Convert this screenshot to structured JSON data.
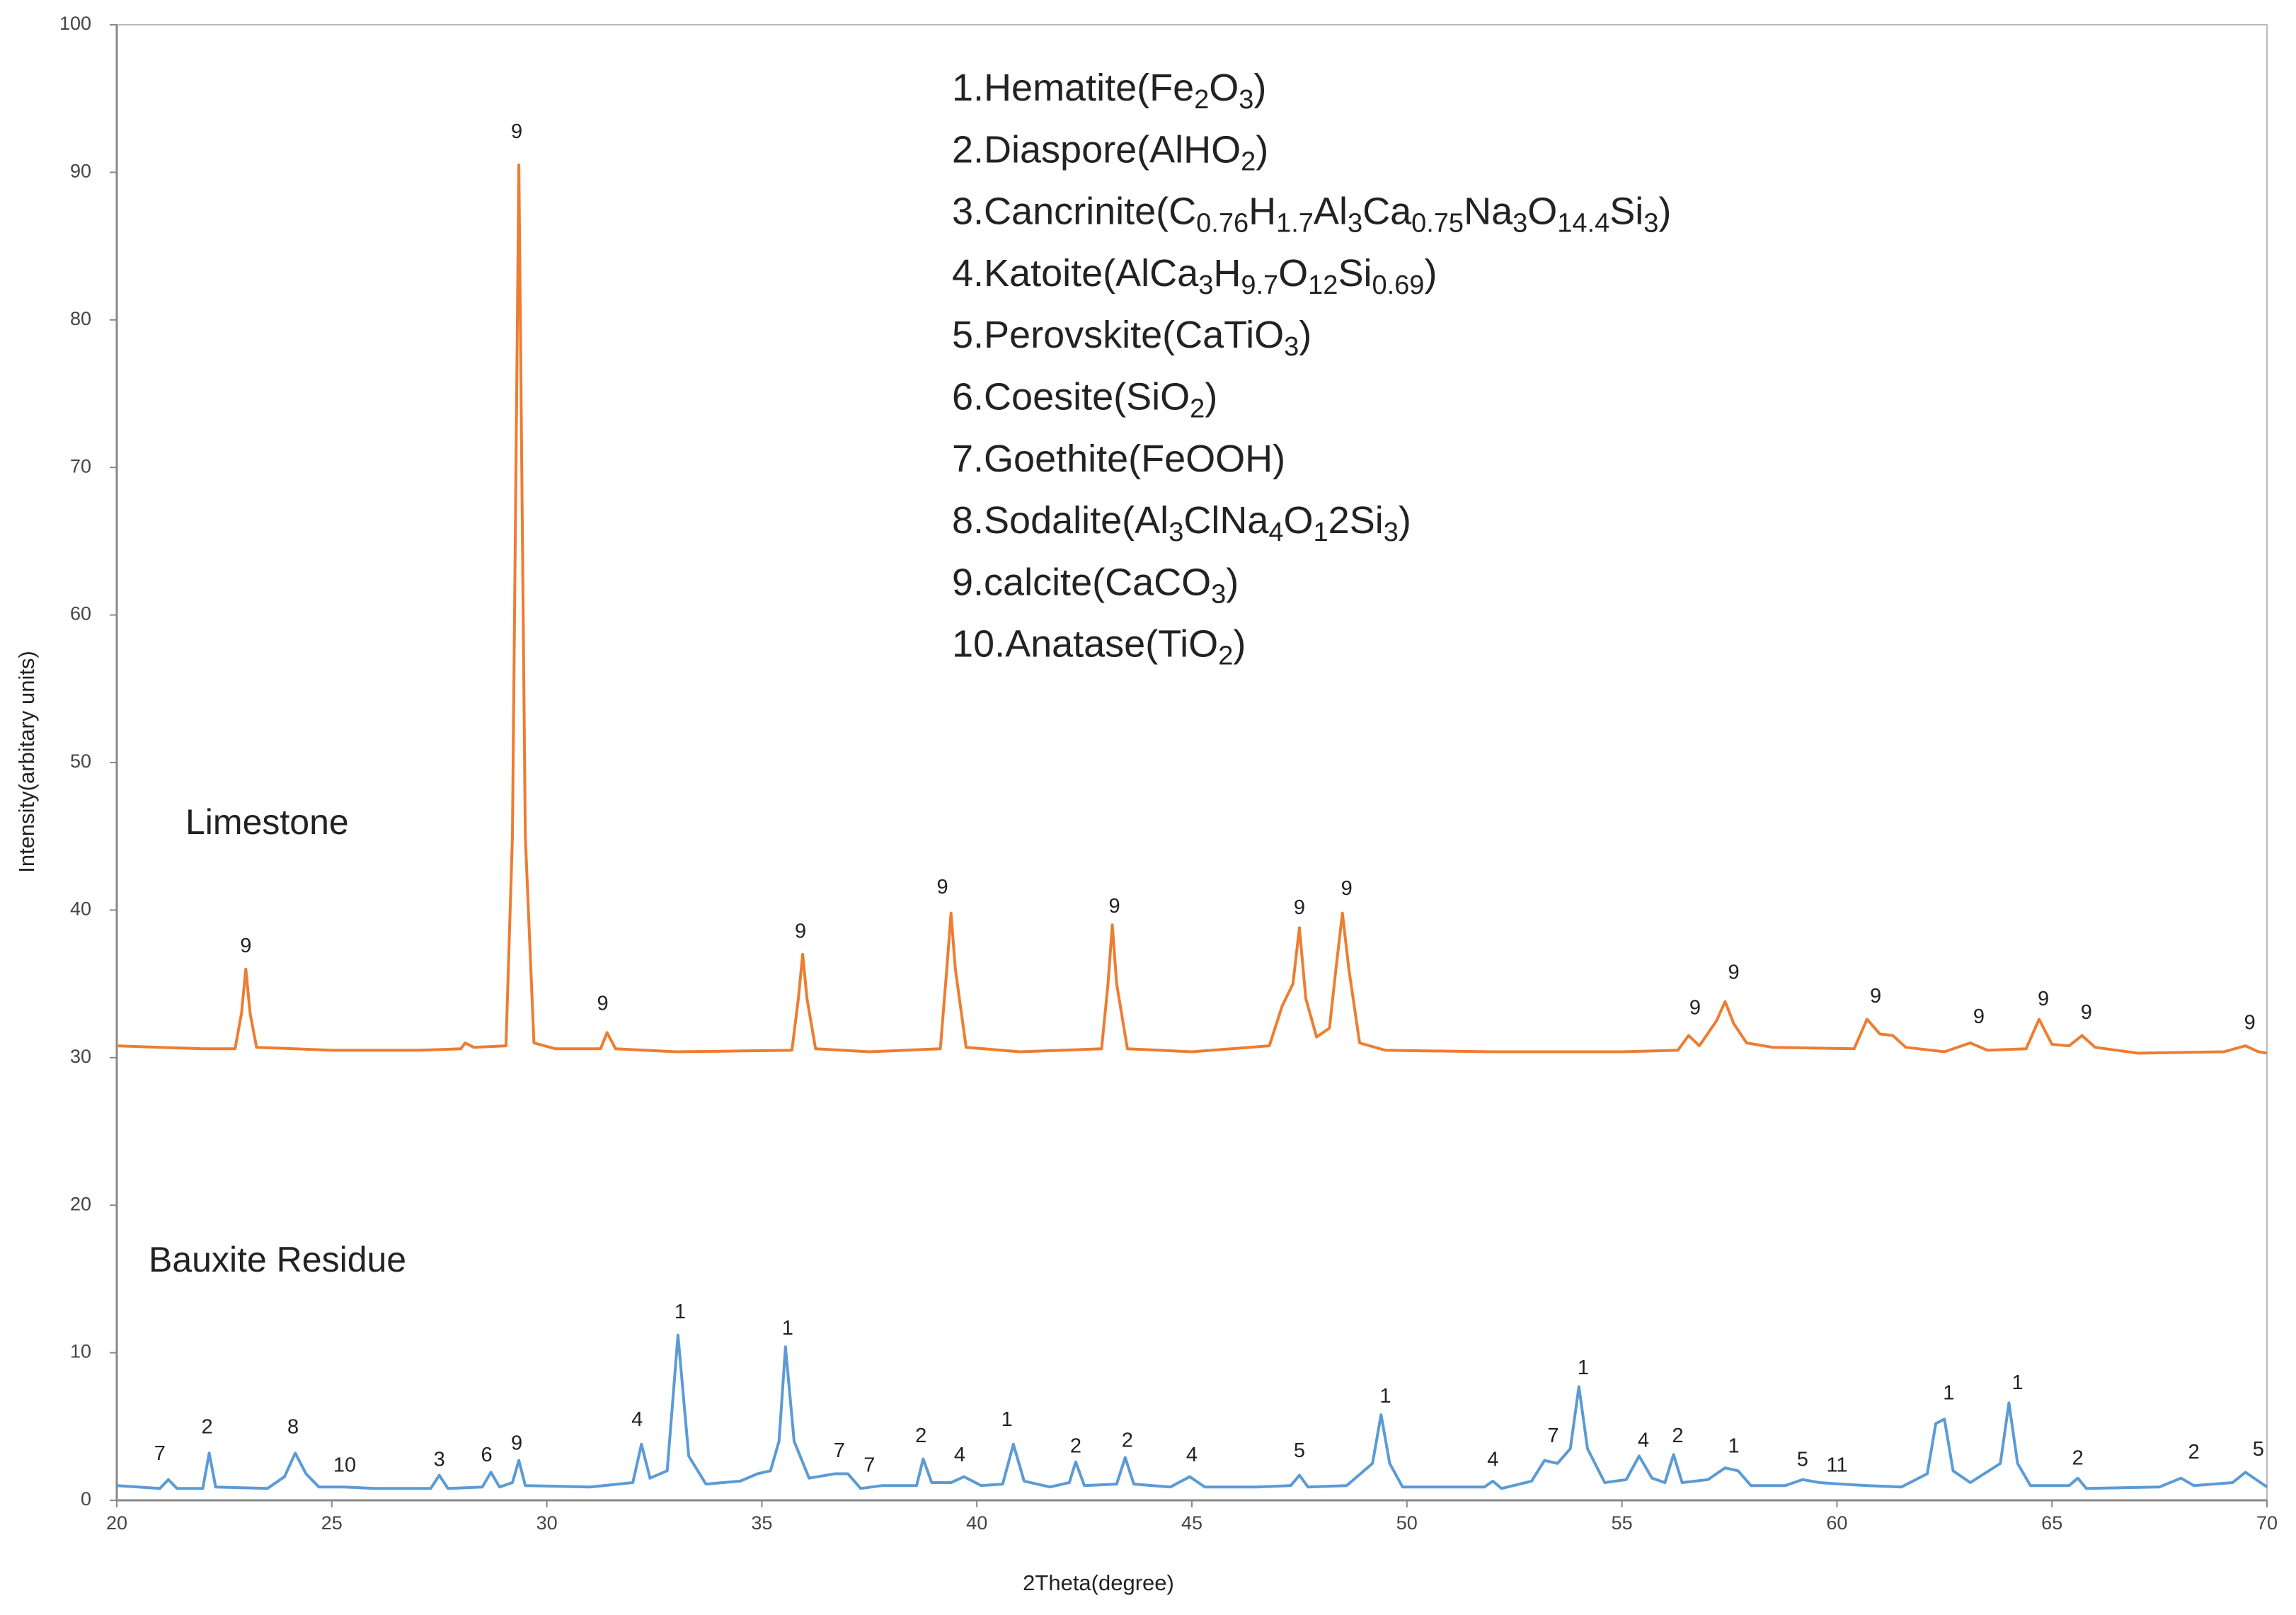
{
  "chart_data": {
    "type": "line",
    "x_label": "2Theta(degree)",
    "y_label": "Intensity(arbitary units)",
    "xlim": [
      20,
      70
    ],
    "xticks": [
      20,
      25,
      30,
      35,
      40,
      45,
      50,
      55,
      60,
      65,
      70
    ],
    "ylim": [
      0,
      100
    ],
    "yticks": [
      0,
      10,
      20,
      30,
      40,
      50,
      60,
      70,
      80,
      90,
      100
    ],
    "grid": false,
    "series": [
      {
        "name": "Limestone",
        "color": "#ED7D31",
        "x": [
          20,
          21,
          22,
          22.75,
          22.9,
          23.0,
          23.1,
          23.25,
          25,
          27,
          28,
          28.1,
          28.3,
          29.05,
          29.2,
          29.35,
          29.5,
          29.7,
          30.2,
          31.25,
          31.4,
          31.6,
          33,
          35.7,
          35.85,
          35.95,
          36.05,
          36.25,
          37.5,
          39.15,
          39.3,
          39.4,
          39.5,
          39.75,
          41,
          42.9,
          43.05,
          43.15,
          43.25,
          43.5,
          45,
          46.8,
          47.1,
          47.35,
          47.5,
          47.65,
          47.9,
          48.2,
          48.35,
          48.5,
          48.65,
          48.9,
          49.5,
          52,
          55,
          56.3,
          56.55,
          56.8,
          57.2,
          57.4,
          57.6,
          57.9,
          58.5,
          60.4,
          60.7,
          61.0,
          61.3,
          61.6,
          62.5,
          63.1,
          63.5,
          64.4,
          64.7,
          65.0,
          65.4,
          65.7,
          66.0,
          67,
          69,
          69.5,
          69.8,
          70
        ],
        "values": [
          30.8,
          30.7,
          30.6,
          30.6,
          33,
          36,
          33,
          30.7,
          30.5,
          30.5,
          30.6,
          31.0,
          30.7,
          30.8,
          45,
          90.5,
          45,
          31,
          30.6,
          30.6,
          31.7,
          30.6,
          30.4,
          30.5,
          34,
          37,
          34,
          30.6,
          30.4,
          30.6,
          36,
          39.8,
          36,
          30.7,
          30.4,
          30.6,
          35,
          39,
          35,
          30.6,
          30.4,
          30.8,
          33.5,
          35,
          38.8,
          34,
          31.4,
          32,
          36,
          39.8,
          36,
          31,
          30.5,
          30.4,
          30.4,
          30.5,
          31.5,
          30.8,
          32.5,
          33.8,
          32.3,
          31.0,
          30.7,
          30.6,
          32.6,
          31.6,
          31.5,
          30.7,
          30.4,
          31.0,
          30.5,
          30.6,
          32.6,
          30.9,
          30.8,
          31.5,
          30.7,
          30.3,
          30.4,
          30.8,
          30.4,
          30.3
        ]
      },
      {
        "name": "Bauxite Residue",
        "color": "#5B9BD5",
        "x": [
          20,
          21,
          21.2,
          21.4,
          22.0,
          22.15,
          22.3,
          23.5,
          23.9,
          24.15,
          24.4,
          24.7,
          25.3,
          26,
          27.3,
          27.5,
          27.7,
          28.5,
          28.7,
          28.9,
          29.2,
          29.35,
          29.5,
          31,
          32.0,
          32.2,
          32.4,
          32.8,
          33.05,
          33.3,
          33.7,
          34.5,
          34.9,
          35.2,
          35.4,
          35.55,
          35.75,
          36.1,
          36.7,
          37,
          37.3,
          37.8,
          38.6,
          38.75,
          38.95,
          39.4,
          39.7,
          40.1,
          40.6,
          40.85,
          41.1,
          41.7,
          42.15,
          42.3,
          42.5,
          43.25,
          43.45,
          43.65,
          44.5,
          44.95,
          45.3,
          46.5,
          47.3,
          47.5,
          47.7,
          48.6,
          49.2,
          49.4,
          49.6,
          49.9,
          51.8,
          52.0,
          52.2,
          52.9,
          53.2,
          53.5,
          53.8,
          54.0,
          54.2,
          54.6,
          55.1,
          55.4,
          55.7,
          56.0,
          56.2,
          56.4,
          57.0,
          57.4,
          57.7,
          58.0,
          58.8,
          59.2,
          59.6,
          60.1,
          60.7,
          61.5,
          62.1,
          62.3,
          62.5,
          62.7,
          63.1,
          63.8,
          64.0,
          64.2,
          64.5,
          65.4,
          65.6,
          65.8,
          67.5,
          68.0,
          68.3,
          69.2,
          69.5,
          69.8,
          70
        ],
        "values": [
          1.0,
          0.8,
          1.4,
          0.8,
          0.8,
          3.2,
          0.9,
          0.8,
          1.6,
          3.2,
          1.8,
          0.9,
          0.9,
          0.8,
          0.8,
          1.7,
          0.8,
          0.9,
          1.9,
          0.9,
          1.2,
          2.7,
          1.0,
          0.9,
          1.2,
          3.8,
          1.5,
          2,
          11.2,
          3,
          1.1,
          1.3,
          1.8,
          2,
          4,
          10.4,
          4,
          1.5,
          1.8,
          1.8,
          0.8,
          1.0,
          1.0,
          2.8,
          1.2,
          1.2,
          1.6,
          1.0,
          1.1,
          3.8,
          1.3,
          0.9,
          1.2,
          2.6,
          1.0,
          1.1,
          2.9,
          1.1,
          0.9,
          1.6,
          0.9,
          0.9,
          1.0,
          1.7,
          0.9,
          1.0,
          2.5,
          5.8,
          2.5,
          0.9,
          0.9,
          1.3,
          0.8,
          1.3,
          2.7,
          2.5,
          3.5,
          7.7,
          3.5,
          1.2,
          1.4,
          3.0,
          1.5,
          1.2,
          3.1,
          1.2,
          1.4,
          2.2,
          2.0,
          1.0,
          1.0,
          1.4,
          1.2,
          1.1,
          1.0,
          0.9,
          1.8,
          5.2,
          5.5,
          2.0,
          1.2,
          2.5,
          6.6,
          2.5,
          1.0,
          1.0,
          1.5,
          0.8,
          0.9,
          1.5,
          1.0,
          1.2,
          1.9,
          1.3,
          0.9
        ]
      }
    ],
    "peak_labels": [
      {
        "x": 23.0,
        "y": 37.5,
        "label": "9"
      },
      {
        "x": 29.3,
        "y": 92.7,
        "label": "9"
      },
      {
        "x": 31.3,
        "y": 33.6,
        "label": "9"
      },
      {
        "x": 35.9,
        "y": 38.5,
        "label": "9"
      },
      {
        "x": 39.2,
        "y": 41.5,
        "label": "9"
      },
      {
        "x": 43.2,
        "y": 40.2,
        "label": "9"
      },
      {
        "x": 47.5,
        "y": 40.1,
        "label": "9"
      },
      {
        "x": 48.6,
        "y": 41.4,
        "label": "9"
      },
      {
        "x": 56.7,
        "y": 33.3,
        "label": "9"
      },
      {
        "x": 57.6,
        "y": 35.7,
        "label": "9"
      },
      {
        "x": 60.9,
        "y": 34.1,
        "label": "9"
      },
      {
        "x": 63.3,
        "y": 32.7,
        "label": "9"
      },
      {
        "x": 64.8,
        "y": 33.9,
        "label": "9"
      },
      {
        "x": 65.8,
        "y": 33.0,
        "label": "9"
      },
      {
        "x": 69.6,
        "y": 32.3,
        "label": "9"
      },
      {
        "x": 21.0,
        "y": 3.1,
        "label": "7"
      },
      {
        "x": 22.1,
        "y": 4.9,
        "label": "2"
      },
      {
        "x": 24.1,
        "y": 4.9,
        "label": "8"
      },
      {
        "x": 25.3,
        "y": 2.3,
        "label": "10"
      },
      {
        "x": 27.5,
        "y": 2.7,
        "label": "3"
      },
      {
        "x": 28.6,
        "y": 3.0,
        "label": "6"
      },
      {
        "x": 29.3,
        "y": 3.8,
        "label": "9"
      },
      {
        "x": 32.1,
        "y": 5.4,
        "label": "4"
      },
      {
        "x": 33.1,
        "y": 12.7,
        "label": "1"
      },
      {
        "x": 35.6,
        "y": 11.6,
        "label": "1"
      },
      {
        "x": 36.8,
        "y": 3.3,
        "label": "7"
      },
      {
        "x": 37.5,
        "y": 2.3,
        "label": "7"
      },
      {
        "x": 38.7,
        "y": 4.3,
        "label": "2"
      },
      {
        "x": 39.6,
        "y": 3.0,
        "label": "4"
      },
      {
        "x": 40.7,
        "y": 5.4,
        "label": "1"
      },
      {
        "x": 42.3,
        "y": 3.6,
        "label": "2"
      },
      {
        "x": 43.5,
        "y": 4.0,
        "label": "2"
      },
      {
        "x": 45.0,
        "y": 3.0,
        "label": "4"
      },
      {
        "x": 47.5,
        "y": 3.3,
        "label": "5"
      },
      {
        "x": 49.5,
        "y": 7.0,
        "label": "1"
      },
      {
        "x": 52.0,
        "y": 2.7,
        "label": "4"
      },
      {
        "x": 53.4,
        "y": 4.3,
        "label": "7"
      },
      {
        "x": 54.1,
        "y": 8.9,
        "label": "1"
      },
      {
        "x": 55.5,
        "y": 4.0,
        "label": "4"
      },
      {
        "x": 56.3,
        "y": 4.3,
        "label": "2"
      },
      {
        "x": 57.6,
        "y": 3.6,
        "label": "1"
      },
      {
        "x": 59.2,
        "y": 2.7,
        "label": "5"
      },
      {
        "x": 60.0,
        "y": 2.3,
        "label": "11"
      },
      {
        "x": 62.6,
        "y": 7.2,
        "label": "1"
      },
      {
        "x": 64.2,
        "y": 7.9,
        "label": "1"
      },
      {
        "x": 65.6,
        "y": 2.8,
        "label": "2"
      },
      {
        "x": 68.3,
        "y": 3.2,
        "label": "2"
      },
      {
        "x": 69.8,
        "y": 3.4,
        "label": "5"
      }
    ],
    "phase_legend": [
      [
        "1.Hematite(Fe",
        {
          "sub": "2"
        },
        "O",
        {
          "sub": "3"
        },
        ")"
      ],
      [
        "2.Diaspore(AlHO",
        {
          "sub": "2"
        },
        ")"
      ],
      [
        "3.Cancrinite(C",
        {
          "sub": "0.76"
        },
        "H",
        {
          "sub": "1.7"
        },
        "Al",
        {
          "sub": "3"
        },
        "Ca",
        {
          "sub": "0.75"
        },
        "Na",
        {
          "sub": "3"
        },
        "O",
        {
          "sub": "14.4"
        },
        "Si",
        {
          "sub": "3"
        },
        ")"
      ],
      [
        "4.Katoite(AlCa",
        {
          "sub": "3"
        },
        "H",
        {
          "sub": "9.7"
        },
        "O",
        {
          "sub": "12"
        },
        "Si",
        {
          "sub": "0.69"
        },
        ")"
      ],
      [
        "5.Perovskite(CaTiO",
        {
          "sub": "3"
        },
        ")"
      ],
      [
        "6.Coesite(SiO",
        {
          "sub": "2"
        },
        ")"
      ],
      [
        "7.Goethite(FeOOH)"
      ],
      [
        "8.Sodalite(Al",
        {
          "sub": "3"
        },
        "ClNa",
        {
          "sub": "4"
        },
        "O",
        {
          "sub": "1"
        },
        "2Si",
        {
          "sub": "3"
        },
        ")"
      ],
      [
        "9.calcite(CaCO",
        {
          "sub": "3"
        },
        ")"
      ],
      [
        "10.Anatase(TiO",
        {
          "sub": "2"
        },
        ")"
      ]
    ]
  }
}
